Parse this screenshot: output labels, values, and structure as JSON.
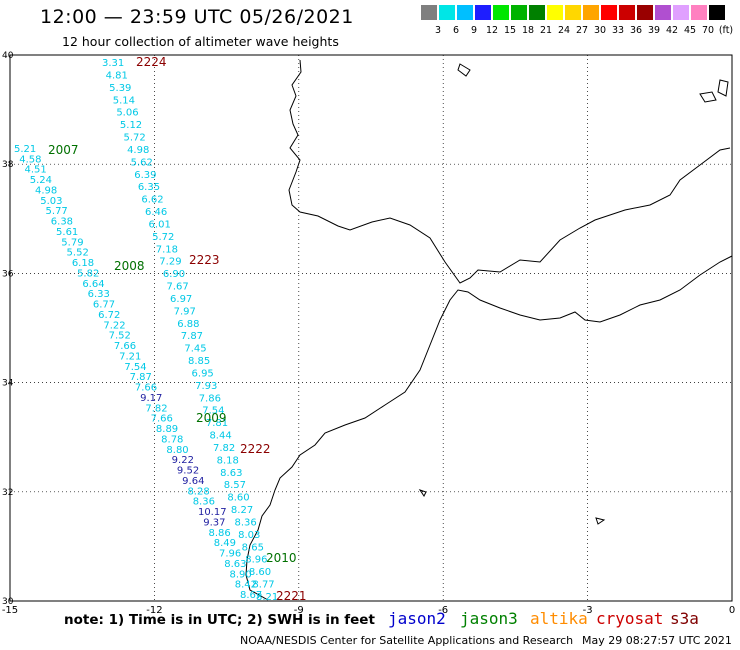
{
  "header": {
    "title": "12:00 — 23:59 UTC 05/26/2021",
    "subtitle": "12 hour collection of altimeter wave heights"
  },
  "colorbar": {
    "colors": [
      "#7f7f7f",
      "#00e6e6",
      "#00bfff",
      "#1e1eff",
      "#00e600",
      "#00b300",
      "#008000",
      "#ffff00",
      "#ffd700",
      "#ffa500",
      "#ff0000",
      "#cc0000",
      "#990000",
      "#b04fd0",
      "#e0a0ff",
      "#ff80c0",
      "#000000"
    ],
    "labels": [
      "3",
      "6",
      "9",
      "12",
      "15",
      "18",
      "21",
      "24",
      "27",
      "30",
      "33",
      "36",
      "39",
      "42",
      "45",
      "70",
      "(ft)"
    ]
  },
  "axes": {
    "x_ticks": [
      "-15",
      "-12",
      "-9",
      "-6",
      "-3",
      "0"
    ],
    "y_ticks": [
      "40",
      "38",
      "36",
      "34",
      "32",
      "30"
    ]
  },
  "passes": [
    {
      "label": "2224",
      "satellite": "cryosat"
    },
    {
      "label": "2007",
      "satellite": "jason3"
    },
    {
      "label": "2008",
      "satellite": "jason3"
    },
    {
      "label": "2223",
      "satellite": "cryosat"
    },
    {
      "label": "2009",
      "satellite": "jason3"
    },
    {
      "label": "2222",
      "satellite": "cryosat"
    },
    {
      "label": "2010",
      "satellite": "jason3"
    },
    {
      "label": "2221",
      "satellite": "cryosat"
    }
  ],
  "tracks": {
    "cryosat_2224": [
      "3.31",
      "4.81",
      "5.39",
      "5.14",
      "5.06",
      "5.12",
      "5.72",
      "4.98",
      "5.62",
      "6.39",
      "6.35",
      "6.62",
      "6.46",
      "6.01",
      "5.72",
      "7.18",
      "7.29",
      "6.90",
      "7.67",
      "6.97",
      "7.97",
      "6.88",
      "7.87",
      "7.45",
      "8.85",
      "6.95",
      "7.93",
      "7.86",
      "7.54",
      "7.81",
      "8.44",
      "7.82",
      "8.18",
      "8.63",
      "8.57",
      "8.60",
      "8.27",
      "8.36",
      "8.03",
      "8.65",
      "8.96",
      "8.60",
      "8.77",
      "8.21"
    ],
    "jason3_2007": [
      "5.21",
      "4.58",
      "4.51",
      "5.24",
      "4.98",
      "5.03",
      "5.77",
      "6.38",
      "5.61",
      "5.79",
      "5.52",
      "6.18",
      "5.82",
      "6.64",
      "6.33",
      "6.77",
      "6.72",
      "7.22",
      "7.52",
      "7.66",
      "7.21",
      "7.54",
      "7.87",
      "7.66",
      "9.17",
      "7.82",
      "7.66",
      "8.89",
      "8.78",
      "8.80",
      "9.22",
      "9.52",
      "9.64",
      "8.28",
      "8.36",
      "10.17",
      "9.37",
      "8.86",
      "8.49",
      "7.96",
      "8.63",
      "8.90",
      "8.42",
      "8.67"
    ]
  },
  "notes": {
    "note": "note:  1) Time is in UTC;  2) SWH is in feet",
    "satellites": [
      {
        "name": "jason2",
        "color": "#0000cc"
      },
      {
        "name": "jason3",
        "color": "#008000"
      },
      {
        "name": "altika",
        "color": "#ff8c00"
      },
      {
        "name": "cryosat",
        "color": "#cc0000"
      },
      {
        "name": "s3a",
        "color": "#800000"
      }
    ],
    "credit": "NOAA/NESDIS Center for Satellite Applications and Research",
    "generated": "May 29 08:27:57 UTC 2021"
  },
  "colors": {
    "cyan": "#00c8e6",
    "navy": "#1e1ea0",
    "pass_red": "#8b0000",
    "pass_green": "#007000"
  }
}
